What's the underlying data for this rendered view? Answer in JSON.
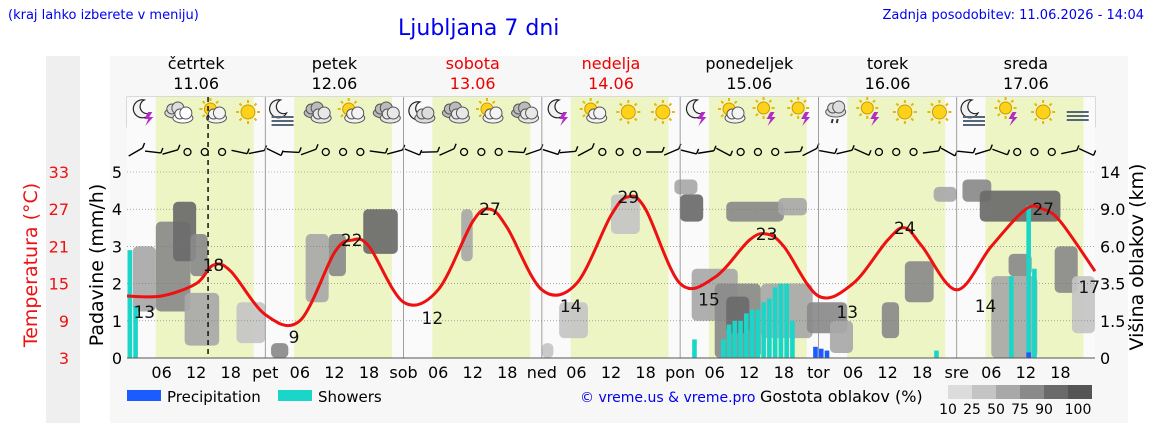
{
  "header": {
    "region_hint": "(kraj lahko izberete v meniju)",
    "title": "Ljubljana 7 dni",
    "updated": "Zadnja posodobitev: 11.06.2026 - 14:04"
  },
  "colors": {
    "temperature_line": "#ee1111",
    "weekend": "#ee0000",
    "precipitation": "#1a5cff",
    "showers": "#1ad6c8",
    "day_band": "#eef5c4",
    "night_band": "#fafafa",
    "credits": "#0000ee"
  },
  "days": [
    {
      "name": "četrtek",
      "date": "11.06",
      "weekend": false
    },
    {
      "name": "petek",
      "date": "12.06",
      "weekend": false
    },
    {
      "name": "sobota",
      "date": "13.06",
      "weekend": true
    },
    {
      "name": "nedelja",
      "date": "14.06",
      "weekend": true
    },
    {
      "name": "ponedeljek",
      "date": "15.06",
      "weekend": false
    },
    {
      "name": "torek",
      "date": "16.06",
      "weekend": false
    },
    {
      "name": "sreda",
      "date": "17.06",
      "weekend": false
    }
  ],
  "icons": [
    "moon-thunder",
    "partly-cloudy",
    "sun-cloud",
    "sun",
    "fog-moon",
    "cloudy",
    "sun-cloud",
    "cloudy",
    "moon-cloud",
    "cloudy",
    "sun-cloud",
    "cloudy",
    "moon-thunder",
    "sun-cloud",
    "sun",
    "sun",
    "moon-thunder",
    "sun-cloud",
    "sun-thunder",
    "sun-thunder",
    "drizzle",
    "sun-thunder",
    "sun",
    "sun",
    "fog-moon",
    "sun-thunder",
    "sun",
    "fog"
  ],
  "chart_data": {
    "type": "line",
    "title": "Ljubljana 7 dni",
    "x_axis_ticks": [
      "06",
      "12",
      "18",
      "pet",
      "06",
      "12",
      "18",
      "sob",
      "06",
      "12",
      "18",
      "ned",
      "06",
      "12",
      "18",
      "pon",
      "06",
      "12",
      "18",
      "tor",
      "06",
      "12",
      "18",
      "sre",
      "06",
      "12",
      "18"
    ],
    "left_axis_precip": {
      "label": "Padavine (mm/h)",
      "ticks": [
        "0",
        "1",
        "2",
        "3",
        "4",
        "5"
      ],
      "range": [
        0,
        5
      ]
    },
    "left_axis_temp": {
      "label": "Temperatura (°C)",
      "ticks": [
        "3",
        "9",
        "15",
        "21",
        "27",
        "33"
      ]
    },
    "right_axis": {
      "label": "Višina oblakov (km)",
      "ticks": [
        "0",
        "1.5",
        "3.5",
        "6.0",
        "9.0",
        "14"
      ]
    },
    "now_marker": "11.06 14:04",
    "temperature_series": {
      "x_hours": [
        0,
        6,
        12,
        15,
        18,
        24,
        30,
        36,
        39,
        42,
        48,
        54,
        60,
        63,
        66,
        72,
        78,
        84,
        87,
        90,
        96,
        102,
        108,
        111,
        114,
        120,
        126,
        132,
        135,
        138,
        144,
        150,
        156,
        159,
        162,
        168
      ],
      "values": [
        13,
        13,
        15,
        18,
        17,
        10,
        9,
        20,
        22,
        21,
        12,
        14,
        25,
        27,
        24,
        14,
        15,
        26,
        29,
        27,
        15,
        16,
        22,
        23,
        21,
        13,
        15,
        22,
        24,
        21,
        14,
        21,
        27,
        27,
        25,
        17
      ],
      "labels": [
        {
          "h": 3,
          "text": "13"
        },
        {
          "h": 15,
          "text": "18"
        },
        {
          "h": 29,
          "text": "9"
        },
        {
          "h": 39,
          "text": "22"
        },
        {
          "h": 53,
          "text": "12"
        },
        {
          "h": 63,
          "text": "27"
        },
        {
          "h": 77,
          "text": "14"
        },
        {
          "h": 87,
          "text": "29"
        },
        {
          "h": 101,
          "text": "15"
        },
        {
          "h": 111,
          "text": "23"
        },
        {
          "h": 125,
          "text": "13"
        },
        {
          "h": 135,
          "text": "24"
        },
        {
          "h": 149,
          "text": "14"
        },
        {
          "h": 159,
          "text": "27"
        },
        {
          "h": 167,
          "text": "17"
        }
      ]
    },
    "precipitation_bars": [
      {
        "h": 119,
        "mm": 0.3
      },
      {
        "h": 120,
        "mm": 0.25
      },
      {
        "h": 121,
        "mm": 0.2
      },
      {
        "h": 156,
        "mm": 0.15
      }
    ],
    "shower_bars": [
      {
        "h": 0,
        "mm": 2.9
      },
      {
        "h": 1,
        "mm": 1.4
      },
      {
        "h": 98,
        "mm": 0.5
      },
      {
        "h": 103,
        "mm": 0.5
      },
      {
        "h": 104,
        "mm": 0.9
      },
      {
        "h": 105,
        "mm": 1.0
      },
      {
        "h": 106,
        "mm": 1.0
      },
      {
        "h": 107,
        "mm": 1.2
      },
      {
        "h": 108,
        "mm": 1.3
      },
      {
        "h": 109,
        "mm": 1.3
      },
      {
        "h": 110,
        "mm": 1.5
      },
      {
        "h": 111,
        "mm": 1.6
      },
      {
        "h": 112,
        "mm": 1.9
      },
      {
        "h": 113,
        "mm": 2.0
      },
      {
        "h": 114,
        "mm": 2.0
      },
      {
        "h": 115,
        "mm": 1.0
      },
      {
        "h": 140,
        "mm": 0.2
      },
      {
        "h": 153,
        "mm": 2.2
      },
      {
        "h": 156,
        "mm": 4.1
      },
      {
        "h": 157,
        "mm": 2.4
      }
    ],
    "cloud_blocks": [
      {
        "h0": 1,
        "h1": 5,
        "km0": 2.0,
        "km1": 6.0,
        "level": 50
      },
      {
        "h0": 5,
        "h1": 11,
        "km0": 2.0,
        "km1": 8.0,
        "level": 75
      },
      {
        "h0": 8,
        "h1": 12,
        "km0": 5.0,
        "km1": 10.0,
        "level": 90
      },
      {
        "h0": 10,
        "h1": 16,
        "km0": 0.5,
        "km1": 3.0,
        "level": 50
      },
      {
        "h0": 11,
        "h1": 14,
        "km0": 4.0,
        "km1": 7.0,
        "level": 75
      },
      {
        "h0": 19,
        "h1": 24,
        "km0": 0.6,
        "km1": 2.5,
        "level": 25
      },
      {
        "h0": 25,
        "h1": 28,
        "km0": 0.0,
        "km1": 0.6,
        "level": 75
      },
      {
        "h0": 31,
        "h1": 35,
        "km0": 2.5,
        "km1": 7.0,
        "level": 50
      },
      {
        "h0": 35,
        "h1": 38,
        "km0": 4.0,
        "km1": 7.0,
        "level": 75
      },
      {
        "h0": 41,
        "h1": 47,
        "km0": 5.5,
        "km1": 9.0,
        "level": 90
      },
      {
        "h0": 58,
        "h1": 60,
        "km0": 5.0,
        "km1": 9.0,
        "level": 50
      },
      {
        "h0": 72,
        "h1": 74,
        "km0": 0.0,
        "km1": 0.6,
        "level": 25
      },
      {
        "h0": 75,
        "h1": 80,
        "km0": 0.8,
        "km1": 2.5,
        "level": 25
      },
      {
        "h0": 84,
        "h1": 89,
        "km0": 7.0,
        "km1": 11.0,
        "level": 25
      },
      {
        "h0": 95,
        "h1": 99,
        "km0": 11.0,
        "km1": 13.0,
        "level": 50
      },
      {
        "h0": 96,
        "h1": 100,
        "km0": 8.0,
        "km1": 11.0,
        "level": 90
      },
      {
        "h0": 98,
        "h1": 106,
        "km0": 1.5,
        "km1": 4.5,
        "level": 50
      },
      {
        "h0": 102,
        "h1": 110,
        "km0": 0.0,
        "km1": 3.5,
        "level": 75
      },
      {
        "h0": 104,
        "h1": 108,
        "km0": 1.0,
        "km1": 2.8,
        "level": 90
      },
      {
        "h0": 104,
        "h1": 114,
        "km0": 8.0,
        "km1": 10.0,
        "level": 75
      },
      {
        "h0": 110,
        "h1": 119,
        "km0": 0.8,
        "km1": 3.5,
        "level": 50
      },
      {
        "h0": 113,
        "h1": 118,
        "km0": 8.5,
        "km1": 10.5,
        "level": 50
      },
      {
        "h0": 118,
        "h1": 125,
        "km0": 1.0,
        "km1": 2.5,
        "level": 75
      },
      {
        "h0": 122,
        "h1": 126,
        "km0": 0.2,
        "km1": 1.5,
        "level": 50
      },
      {
        "h0": 131,
        "h1": 134,
        "km0": 0.8,
        "km1": 2.5,
        "level": 75
      },
      {
        "h0": 135,
        "h1": 140,
        "km0": 2.5,
        "km1": 5.0,
        "level": 75
      },
      {
        "h0": 140,
        "h1": 144,
        "km0": 10.0,
        "km1": 12.0,
        "level": 50
      },
      {
        "h0": 145,
        "h1": 150,
        "km0": 10.0,
        "km1": 13.0,
        "level": 75
      },
      {
        "h0": 148,
        "h1": 162,
        "km0": 8.0,
        "km1": 11.5,
        "level": 90
      },
      {
        "h0": 150,
        "h1": 158,
        "km0": 0.0,
        "km1": 4.0,
        "level": 50
      },
      {
        "h0": 153,
        "h1": 157,
        "km0": 4.0,
        "km1": 5.5,
        "level": 75
      },
      {
        "h0": 161,
        "h1": 165,
        "km0": 3.0,
        "km1": 6.0,
        "level": 75
      },
      {
        "h0": 164,
        "h1": 168,
        "km0": 1.0,
        "km1": 4.0,
        "level": 25
      }
    ]
  },
  "legend": {
    "precipitation": "Precipitation",
    "showers": "Showers",
    "credits": "© vreme.us & vreme.pro",
    "cloud_density_title": "Gostota oblakov (%)",
    "cloud_density_levels": [
      {
        "label": "10",
        "color": "#dcdcdc"
      },
      {
        "label": "25",
        "color": "#c4c4c4"
      },
      {
        "label": "50",
        "color": "#a8a8a8"
      },
      {
        "label": "75",
        "color": "#8a8a8a"
      },
      {
        "label": "90",
        "color": "#6a6a6a"
      },
      {
        "label": "100",
        "color": "#555555"
      }
    ]
  }
}
